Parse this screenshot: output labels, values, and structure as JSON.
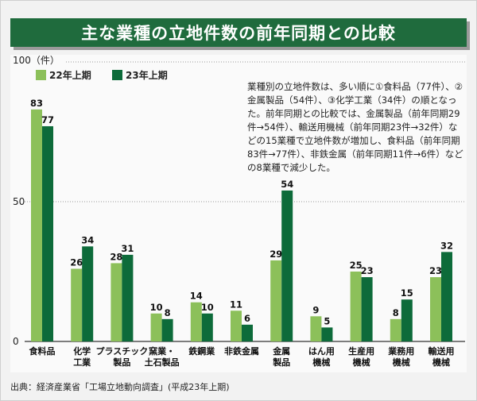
{
  "title": "主な業種の立地件数の前年同期との比較",
  "note": "業種別の立地件数は、多い順に①食料品（77件）、②金属製品（54件）、③化学工業（34件）の順となった。前年同期との比較では、金属製品（前年同期29件→54件）、輸送用機械（前年同期23件→32件）などの15業種で立地件数が増加し、食料品（前年同期83件→77件）、非鉄金属（前年同期11件→6件）などの8業種で減少した。",
  "source": "出典：経済産業省「工場立地動向調査」(平成23年上期)",
  "colors": {
    "title_bg": "#1f6b3d",
    "series_prev": "#8cc05a",
    "series_curr": "#0d6b3a"
  },
  "chart_data": {
    "type": "bar",
    "ylabel": "100（件）",
    "ylim": [
      0,
      100
    ],
    "yticks": [
      0,
      50
    ],
    "categories": [
      [
        "食料品"
      ],
      [
        "化学",
        "工業"
      ],
      [
        "プラスチック",
        "製品"
      ],
      [
        "窯業・",
        "土石製品"
      ],
      [
        "鉄鋼業"
      ],
      [
        "非鉄金属"
      ],
      [
        "金属",
        "製品"
      ],
      [
        "はん用",
        "機械"
      ],
      [
        "生産用",
        "機械"
      ],
      [
        "業務用",
        "機械"
      ],
      [
        "輸送用",
        "機械"
      ]
    ],
    "series": [
      {
        "name": "22年上期",
        "values": [
          83,
          26,
          28,
          10,
          14,
          11,
          29,
          9,
          25,
          8,
          23
        ]
      },
      {
        "name": "23年上期",
        "values": [
          77,
          34,
          31,
          8,
          10,
          6,
          54,
          5,
          23,
          15,
          32
        ]
      }
    ],
    "legend": "top-left",
    "grid": "dotted"
  }
}
